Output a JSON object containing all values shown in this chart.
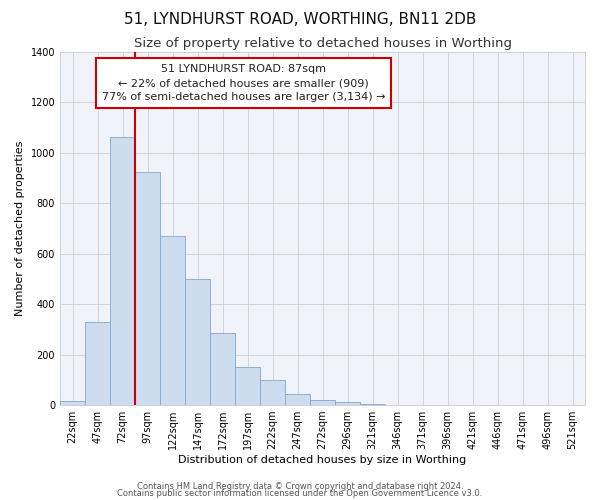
{
  "title": "51, LYNDHURST ROAD, WORTHING, BN11 2DB",
  "subtitle": "Size of property relative to detached houses in Worthing",
  "xlabel": "Distribution of detached houses by size in Worthing",
  "ylabel": "Number of detached properties",
  "bar_labels": [
    "22sqm",
    "47sqm",
    "72sqm",
    "97sqm",
    "122sqm",
    "147sqm",
    "172sqm",
    "197sqm",
    "222sqm",
    "247sqm",
    "272sqm",
    "296sqm",
    "321sqm",
    "346sqm",
    "371sqm",
    "396sqm",
    "421sqm",
    "446sqm",
    "471sqm",
    "496sqm",
    "521sqm"
  ],
  "bar_values": [
    18,
    330,
    1060,
    925,
    670,
    500,
    285,
    150,
    100,
    42,
    20,
    12,
    5,
    0,
    0,
    0,
    0,
    0,
    0,
    0,
    0
  ],
  "bar_color": "#cddcee",
  "bar_edge_color": "#8aafd4",
  "vline_color": "#cc0000",
  "vline_pos": 2.5,
  "annotation_line1": "51 LYNDHURST ROAD: 87sqm",
  "annotation_line2": "← 22% of detached houses are smaller (909)",
  "annotation_line3": "77% of semi-detached houses are larger (3,134) →",
  "annotation_box_color": "#ffffff",
  "annotation_box_edge": "#cc0000",
  "ylim": [
    0,
    1400
  ],
  "yticks": [
    0,
    200,
    400,
    600,
    800,
    1000,
    1200,
    1400
  ],
  "footer1": "Contains HM Land Registry data © Crown copyright and database right 2024.",
  "footer2": "Contains public sector information licensed under the Open Government Licence v3.0.",
  "title_fontsize": 11,
  "subtitle_fontsize": 9.5,
  "axis_label_fontsize": 8,
  "tick_fontsize": 7,
  "annotation_fontsize": 8,
  "footer_fontsize": 6,
  "bar_width": 1.0,
  "grid_color": "#d0d0d0",
  "bg_color": "#f0f4fa"
}
